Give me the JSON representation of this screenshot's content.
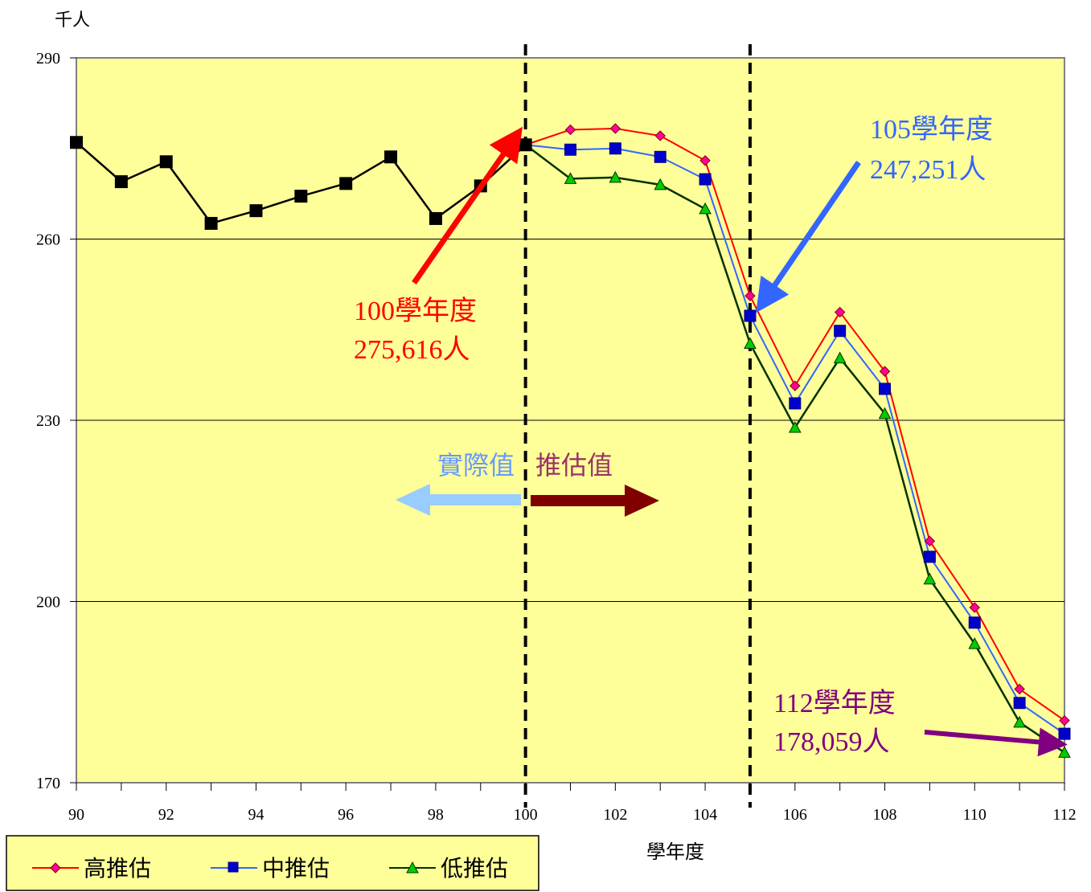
{
  "chart_data": {
    "type": "line",
    "ylabel": "千人",
    "xlabel": "學年度",
    "x": [
      90,
      91,
      92,
      93,
      94,
      95,
      96,
      97,
      98,
      99,
      100,
      101,
      102,
      103,
      104,
      105,
      106,
      107,
      108,
      109,
      110,
      111,
      112
    ],
    "xticks": [
      "90",
      "92",
      "94",
      "96",
      "98",
      "100",
      "102",
      "104",
      "106",
      "108",
      "110",
      "112"
    ],
    "ylim": [
      170,
      290
    ],
    "yticks": [
      "170",
      "200",
      "230",
      "260",
      "290"
    ],
    "grid": "horizontal",
    "colors": {
      "plot_bg": "#FFFF99",
      "actual": "#000000",
      "high": "#FF0000",
      "mid": "#3366FF",
      "low": "#003300"
    },
    "actual": {
      "x": [
        90,
        91,
        92,
        93,
        94,
        95,
        96,
        97,
        98,
        99,
        100
      ],
      "values": [
        276.0,
        269.5,
        272.8,
        262.6,
        264.7,
        267.1,
        269.2,
        273.6,
        263.4,
        268.8,
        275.6
      ]
    },
    "series": [
      {
        "name": "高推估",
        "x": [
          100,
          101,
          102,
          103,
          104,
          105,
          106,
          107,
          108,
          109,
          110,
          111,
          112
        ],
        "values": [
          275.6,
          278.1,
          278.3,
          277.1,
          273.0,
          250.6,
          235.7,
          247.9,
          238.1,
          210.0,
          199.0,
          185.5,
          180.3
        ]
      },
      {
        "name": "中推估",
        "x": [
          100,
          101,
          102,
          103,
          104,
          105,
          106,
          107,
          108,
          109,
          110,
          111,
          112
        ],
        "values": [
          275.6,
          274.8,
          275.0,
          273.6,
          269.9,
          247.3,
          232.8,
          244.8,
          235.2,
          207.4,
          196.5,
          183.2,
          178.1
        ]
      },
      {
        "name": "低推估",
        "x": [
          100,
          101,
          102,
          103,
          104,
          105,
          106,
          107,
          108,
          109,
          110,
          111,
          112
        ],
        "values": [
          275.6,
          270.0,
          270.2,
          269.0,
          265.0,
          242.7,
          228.8,
          240.3,
          231.1,
          203.7,
          193.0,
          180.0,
          175.0
        ]
      }
    ],
    "vlines": [
      100,
      105
    ],
    "annotations": [
      {
        "id": "a100",
        "line1": "100學年度",
        "line2": "275,616人",
        "color": "#FF0000"
      },
      {
        "id": "a105",
        "line1": "105學年度",
        "line2": "247,251人",
        "color": "#3366FF"
      },
      {
        "id": "a112",
        "line1": "112學年度",
        "line2": "178,059人",
        "color": "#800080"
      }
    ],
    "region_labels": {
      "left": "實際值",
      "right": "推估值",
      "left_color": "#6699FF",
      "right_color": "#993366"
    },
    "legend": {
      "placement": "bottom-left",
      "items": [
        "高推估",
        "中推估",
        "低推估"
      ]
    }
  }
}
